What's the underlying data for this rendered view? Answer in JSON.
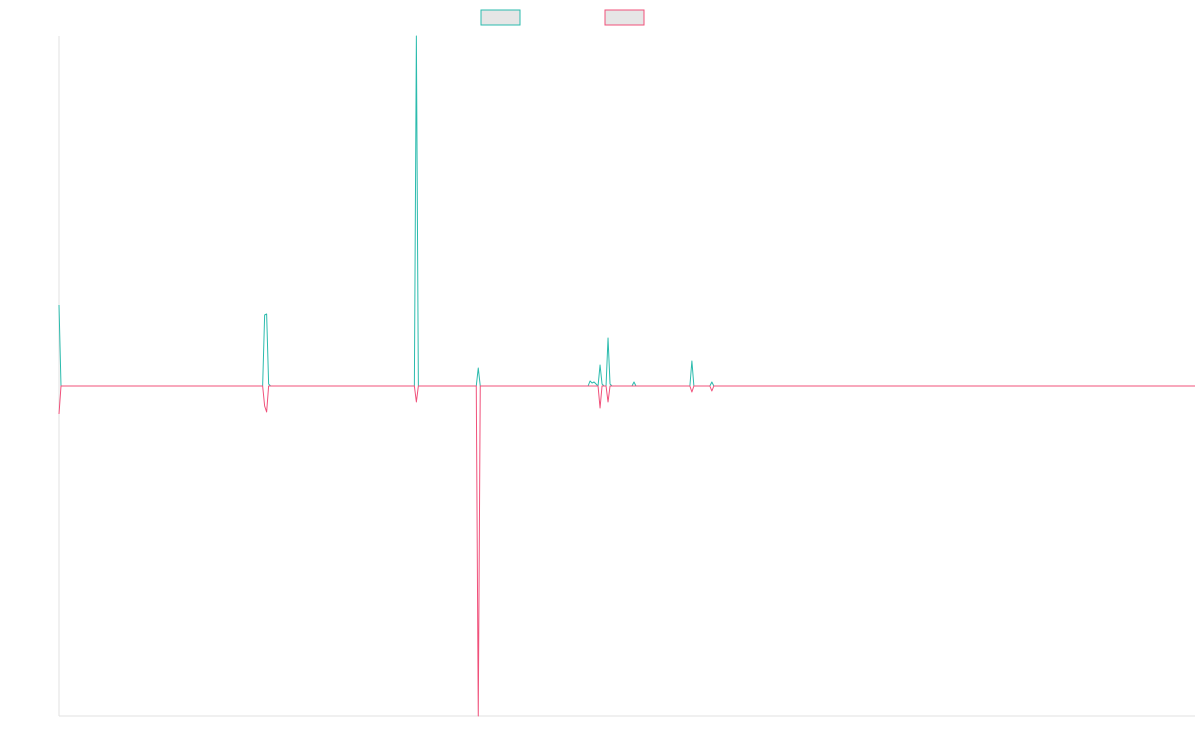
{
  "chart_data": {
    "type": "line",
    "title": "",
    "xlabel": "",
    "ylabel": "",
    "grid": false,
    "legend_placement": "top-center",
    "x": [
      0,
      1,
      2,
      3,
      4,
      5,
      6,
      7,
      8,
      9,
      10,
      11,
      12,
      13,
      14,
      15,
      16,
      17,
      18,
      19,
      20,
      21,
      22,
      23,
      24,
      25,
      26,
      27,
      28,
      29,
      30,
      31,
      32,
      33,
      34,
      35,
      36,
      37,
      38,
      39,
      40,
      41,
      42,
      43,
      44,
      45,
      46,
      47,
      48,
      49,
      50,
      51,
      52,
      53,
      54,
      55,
      56,
      57,
      58,
      59,
      60,
      61,
      62,
      63,
      64,
      65,
      66,
      67,
      68,
      69,
      70,
      71,
      72,
      73,
      74,
      75,
      76,
      77,
      78,
      79,
      80,
      81,
      82,
      83,
      84,
      85,
      86,
      87,
      88,
      89,
      90,
      91,
      92,
      93,
      94,
      95,
      96,
      97,
      98,
      99,
      100,
      101,
      102,
      103,
      104,
      105,
      106,
      107,
      108,
      109,
      110,
      111,
      112,
      113,
      114,
      115,
      116,
      117,
      118,
      119,
      120,
      121,
      122,
      123,
      124,
      125,
      126,
      127,
      128,
      129,
      130,
      131,
      132,
      133,
      134,
      135,
      136,
      137,
      138,
      139,
      140,
      141,
      142,
      143,
      144,
      145,
      146,
      147,
      148,
      149,
      150,
      151,
      152,
      153,
      154,
      155,
      156,
      157,
      158,
      159,
      160,
      161,
      162,
      163,
      164,
      165,
      166,
      167,
      168,
      169,
      170,
      171,
      172,
      173,
      174,
      175,
      176,
      177,
      178,
      179,
      180,
      181,
      182,
      183,
      184,
      185,
      186,
      187,
      188,
      189,
      190,
      191,
      192,
      193,
      194,
      195,
      196,
      197,
      198,
      199,
      200,
      201,
      202,
      203,
      204,
      205,
      206,
      207,
      208,
      209,
      210,
      211,
      212,
      213,
      214,
      215,
      216,
      217,
      218,
      219,
      220,
      221,
      222,
      223,
      224,
      225,
      226,
      227,
      228,
      229,
      230,
      231,
      232,
      233,
      234,
      235,
      236,
      237,
      238,
      239,
      240,
      241,
      242,
      243,
      244,
      245,
      246,
      247,
      248,
      249,
      250,
      251,
      252,
      253,
      254,
      255,
      256,
      257,
      258,
      259,
      260,
      261,
      262,
      263,
      264,
      265,
      266,
      267,
      268,
      269,
      270,
      271,
      272,
      273,
      274,
      275,
      276,
      277,
      278,
      279,
      280,
      281,
      282,
      283,
      284,
      285,
      286,
      287,
      288,
      289,
      290,
      291,
      292,
      293,
      294,
      295,
      296,
      297,
      298,
      299,
      300,
      301,
      302,
      303,
      304,
      305,
      306,
      307,
      308,
      309,
      310,
      311,
      312,
      313,
      314,
      315,
      316,
      317,
      318,
      319,
      320,
      321,
      322,
      323,
      324,
      325,
      326,
      327,
      328,
      329,
      330,
      331,
      332,
      333,
      334,
      335,
      336,
      337,
      338,
      339,
      340,
      341,
      342,
      343,
      344,
      345,
      346,
      347,
      348,
      349,
      350,
      351,
      352,
      353,
      354,
      355,
      356,
      357,
      358,
      359,
      360,
      361,
      362,
      363,
      364,
      365,
      366,
      367,
      368,
      369,
      370,
      371,
      372,
      373,
      374,
      375,
      376,
      377,
      378,
      379,
      380,
      381,
      382,
      383,
      384,
      385,
      386,
      387,
      388,
      389,
      390,
      391,
      392,
      393,
      394,
      395,
      396,
      397,
      398,
      399,
      400,
      401,
      402,
      403,
      404,
      405,
      406,
      407,
      408,
      409,
      410,
      411,
      412,
      413,
      414,
      415,
      416,
      417,
      418,
      419,
      420,
      421,
      422,
      423,
      424,
      425,
      426,
      427,
      428,
      429,
      430,
      431,
      432,
      433,
      434,
      435,
      436,
      437,
      438,
      439,
      440,
      441,
      442,
      443,
      444,
      445,
      446,
      447,
      448,
      449,
      450,
      451,
      452,
      453,
      454,
      455,
      456,
      457,
      458,
      459,
      460,
      461,
      462,
      463,
      464,
      465,
      466,
      467,
      468,
      469,
      470,
      471,
      472,
      473,
      474,
      475,
      476,
      477,
      478,
      479,
      480,
      481,
      482,
      483,
      484,
      485,
      486,
      487,
      488,
      489,
      490,
      491,
      492,
      493,
      494,
      495,
      496,
      497,
      498,
      499,
      500,
      501,
      502,
      503,
      504,
      505,
      506,
      507,
      508,
      509,
      510,
      511,
      512,
      513,
      514,
      515,
      516,
      517,
      518,
      519,
      520,
      521,
      522,
      523,
      524,
      525,
      526,
      527,
      528,
      529,
      530,
      531,
      532,
      533,
      534,
      535,
      536,
      537,
      538,
      539,
      540,
      541,
      542,
      543,
      544,
      545,
      546,
      547,
      548,
      549,
      550,
      551,
      552,
      553,
      554,
      555,
      556,
      557,
      558,
      559,
      560,
      561,
      562,
      563,
      564,
      565,
      566,
      567,
      568,
      569
    ],
    "xlim": [
      0,
      569
    ],
    "ylim": [
      -330,
      350
    ],
    "series": [
      {
        "color": "#2bbbad",
        "legend_fill": "#e6e6e6",
        "spikes": [
          [
            0,
            81
          ],
          [
            103,
            71
          ],
          [
            104,
            72
          ],
          [
            105,
            2
          ],
          [
            179,
            350
          ],
          [
            210,
            18
          ],
          [
            266,
            5
          ],
          [
            267,
            3
          ],
          [
            268,
            4
          ],
          [
            269,
            2
          ],
          [
            271,
            21
          ],
          [
            272,
            2
          ],
          [
            275,
            48
          ],
          [
            276,
            2
          ],
          [
            288,
            4
          ],
          [
            317,
            25
          ],
          [
            327,
            4
          ]
        ]
      },
      {
        "color": "#f0507a",
        "legend_fill": "#e6e6e6",
        "spikes": [
          [
            0,
            -28
          ],
          [
            103,
            -20
          ],
          [
            104,
            -26
          ],
          [
            179,
            -16
          ],
          [
            210,
            -330
          ],
          [
            271,
            -22
          ],
          [
            275,
            -16
          ],
          [
            317,
            -6
          ],
          [
            327,
            -5
          ]
        ]
      }
    ]
  }
}
